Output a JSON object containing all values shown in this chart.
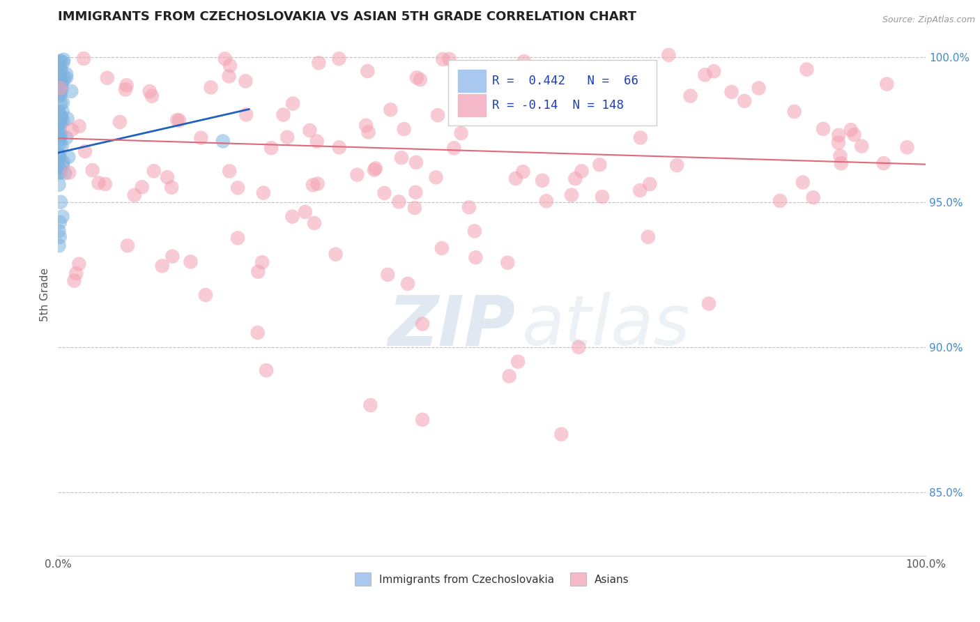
{
  "title": "IMMIGRANTS FROM CZECHOSLOVAKIA VS ASIAN 5TH GRADE CORRELATION CHART",
  "source": "Source: ZipAtlas.com",
  "ylabel": "5th Grade",
  "xlim": [
    0.0,
    1.0
  ],
  "ylim": [
    0.828,
    1.008
  ],
  "blue_R": 0.442,
  "blue_N": 66,
  "pink_R": -0.14,
  "pink_N": 148,
  "blue_color": "#7eb3e0",
  "pink_color": "#f4a0b0",
  "blue_line_color": "#2060c0",
  "pink_line_color": "#e06878",
  "blue_legend_color": "#a8c8f0",
  "pink_legend_color": "#f4b8c8",
  "legend_text_color": "#2040b0",
  "background_color": "#ffffff",
  "watermark_zip": "ZIP",
  "watermark_atlas": "atlas",
  "grid_color": "#bbbbbb",
  "ytick_color": "#4488cc",
  "xtick_color": "#555555"
}
